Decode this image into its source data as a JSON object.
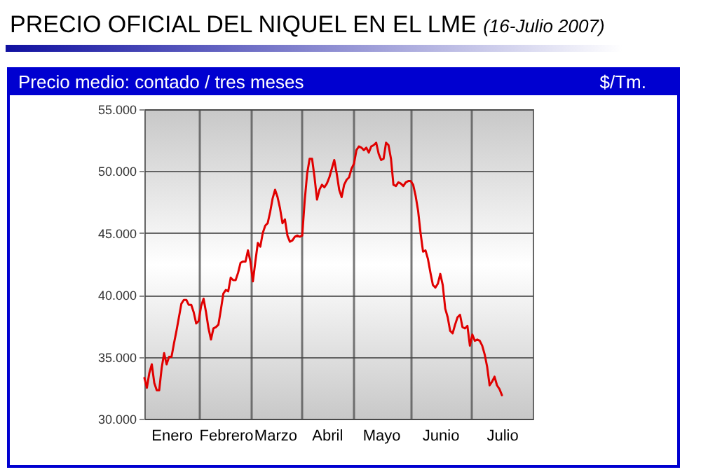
{
  "chart_data": {
    "type": "line",
    "title": "PRECIO OFICIAL DEL NIQUEL EN EL LME",
    "subtitle": "(16-Julio 2007)",
    "annotations": [
      "Precio medio: contado / tres meses"
    ],
    "ylabel": "$/Tm.",
    "categories": [
      null,
      null,
      null,
      null,
      null,
      null,
      null,
      null,
      null,
      null,
      null,
      "Enero",
      null,
      null,
      null,
      null,
      null,
      null,
      null,
      null,
      null,
      null,
      null,
      null,
      null,
      null,
      null,
      null,
      null,
      null,
      null,
      null,
      null,
      "Febrero",
      null,
      null,
      null,
      null,
      null,
      null,
      null,
      null,
      null,
      null,
      null,
      null,
      null,
      null,
      null,
      null,
      null,
      null,
      null,
      "Marzo",
      null,
      null,
      null,
      null,
      null,
      null,
      null,
      null,
      null,
      null,
      null,
      null,
      null,
      null,
      null,
      null,
      null,
      null,
      null,
      null,
      "Abril",
      null,
      null,
      null,
      null,
      null,
      null,
      null,
      null,
      null,
      null,
      null,
      null,
      null,
      null,
      null,
      null,
      null,
      null,
      null,
      null,
      null,
      "Mayo",
      null,
      null,
      null,
      null,
      null,
      null,
      null,
      null,
      null,
      null,
      null,
      null,
      null,
      null,
      null,
      null,
      null,
      null,
      null,
      null,
      null,
      null,
      null,
      "Junio",
      null,
      null,
      null,
      null,
      null,
      null,
      null,
      null,
      null,
      null,
      null,
      null,
      null,
      null,
      null,
      null,
      null,
      null,
      null,
      null,
      null,
      null,
      null,
      null,
      "Julio"
    ],
    "series": [
      {
        "color": "#e00000",
        "values": [
          33300,
          32500,
          33700,
          34400,
          32900,
          32300,
          32300,
          34100,
          35300,
          34400,
          35000,
          35000,
          36100,
          37100,
          38200,
          39300,
          39600,
          39600,
          39200,
          39200,
          38600,
          37700,
          37900,
          39100,
          39700,
          38600,
          37300,
          36400,
          37300,
          37400,
          37600,
          38800,
          40100,
          40400,
          40300,
          41400,
          41200,
          41200,
          41800,
          42600,
          42700,
          42700,
          43600,
          42700,
          41100,
          42700,
          44200,
          43900,
          45000,
          45600,
          45800,
          46700,
          47800,
          48500,
          47900,
          47000,
          45800,
          46100,
          44800,
          44300,
          44400,
          44700,
          44800,
          44700,
          44800,
          47600,
          49800,
          51000,
          51000,
          49500,
          47700,
          48500,
          48900,
          48700,
          49000,
          49500,
          50200,
          50900,
          49800,
          48500,
          47900,
          48900,
          49300,
          49500,
          50200,
          50600,
          51700,
          52000,
          51900,
          51700,
          51900,
          51500,
          52000,
          52100,
          52300,
          51400,
          50900,
          51000,
          52300,
          52100,
          51000,
          48900,
          48800,
          49100,
          49000,
          48800,
          49100,
          49200,
          49200,
          48900,
          48000,
          46800,
          45000,
          43500,
          43600,
          42900,
          41800,
          40800,
          40600,
          40900,
          41700,
          40800,
          38900,
          38200,
          37100,
          36900,
          37600,
          38200,
          38400,
          37400,
          37300,
          37500,
          35900,
          36800,
          36300,
          36400,
          36300,
          35900,
          35200,
          34200,
          32700,
          33000,
          33400,
          32700,
          32400,
          31900
        ]
      }
    ],
    "ylim": [
      30000,
      55000
    ],
    "yticks": [
      {
        "value": 30000,
        "label": "30.000"
      },
      {
        "value": 35000,
        "label": "35.000"
      },
      {
        "value": 40000,
        "label": "40.000"
      },
      {
        "value": 45000,
        "label": "45.000"
      },
      {
        "value": 50000,
        "label": "50.000"
      },
      {
        "value": 55000,
        "label": "55.000"
      }
    ],
    "grid": true,
    "marker": "none",
    "line_style": "solid"
  }
}
